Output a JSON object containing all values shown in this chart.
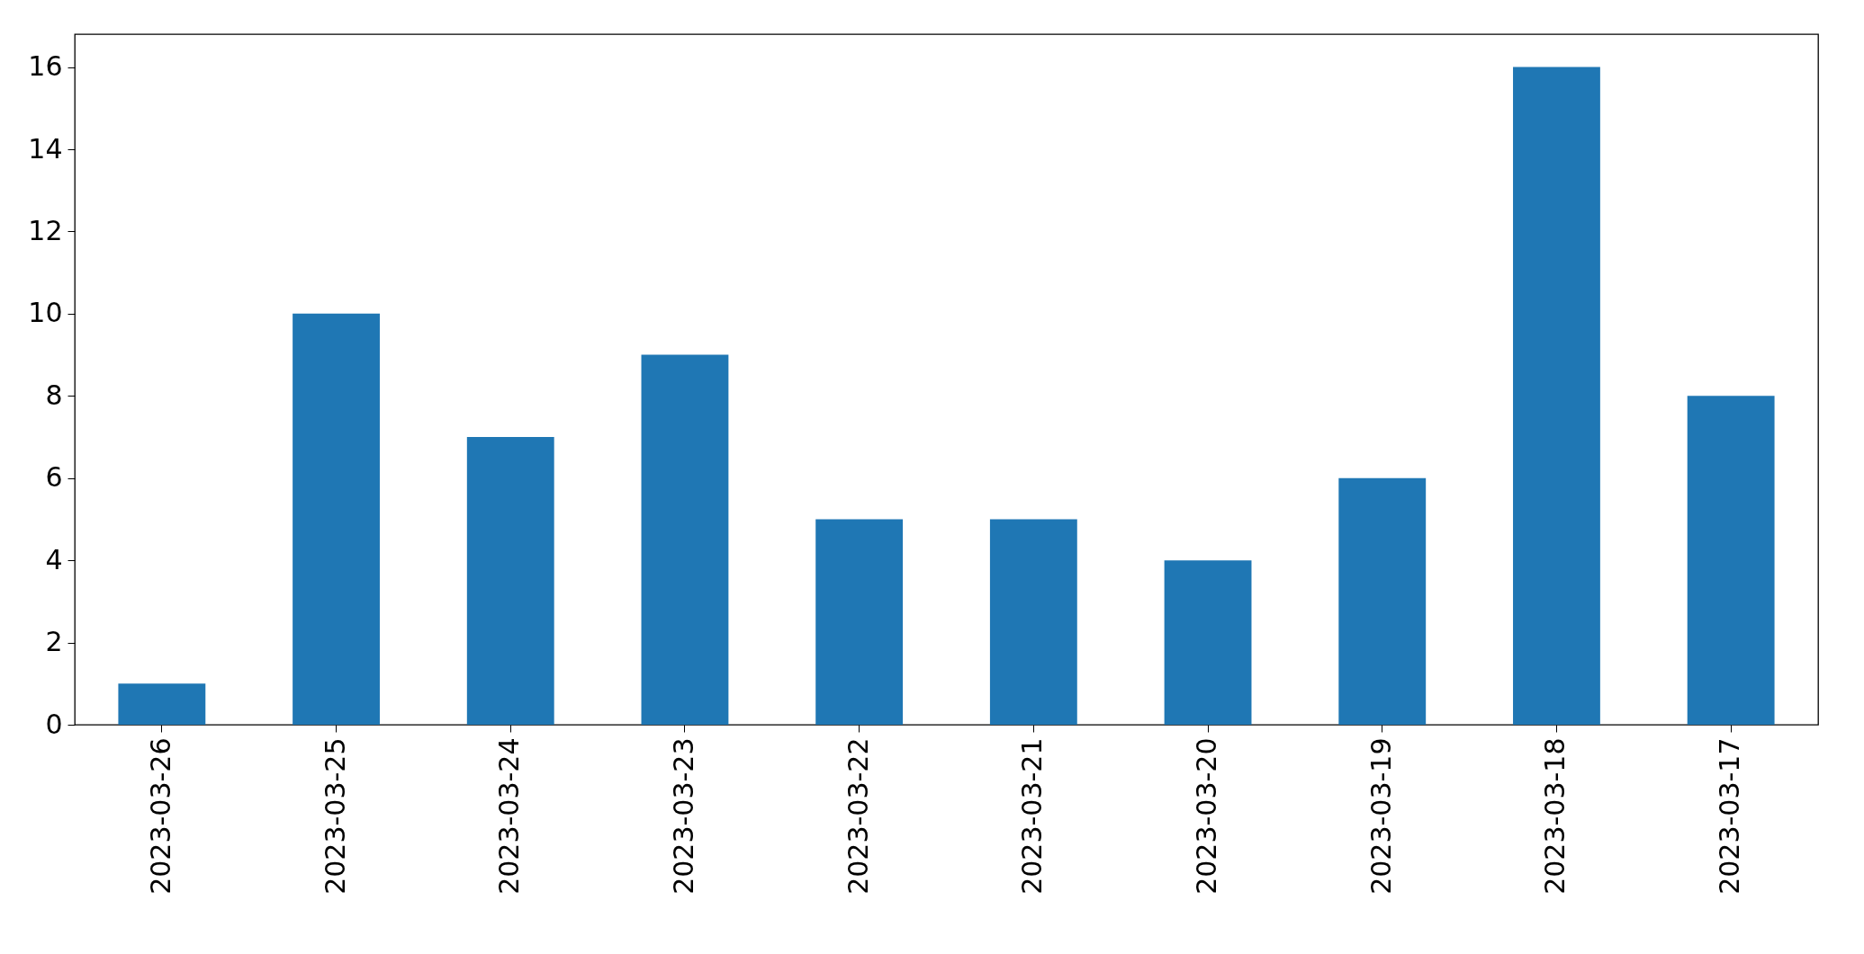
{
  "chart_data": {
    "type": "bar",
    "categories": [
      "2023-03-26",
      "2023-03-25",
      "2023-03-24",
      "2023-03-23",
      "2023-03-22",
      "2023-03-21",
      "2023-03-20",
      "2023-03-19",
      "2023-03-18",
      "2023-03-17"
    ],
    "values": [
      1,
      10,
      7,
      9,
      5,
      5,
      4,
      6,
      16,
      8
    ],
    "color": "#1f77b4",
    "ylim": [
      0,
      16.8
    ],
    "yticks": [
      0,
      2,
      4,
      6,
      8,
      10,
      12,
      14,
      16
    ],
    "grid": false
  }
}
